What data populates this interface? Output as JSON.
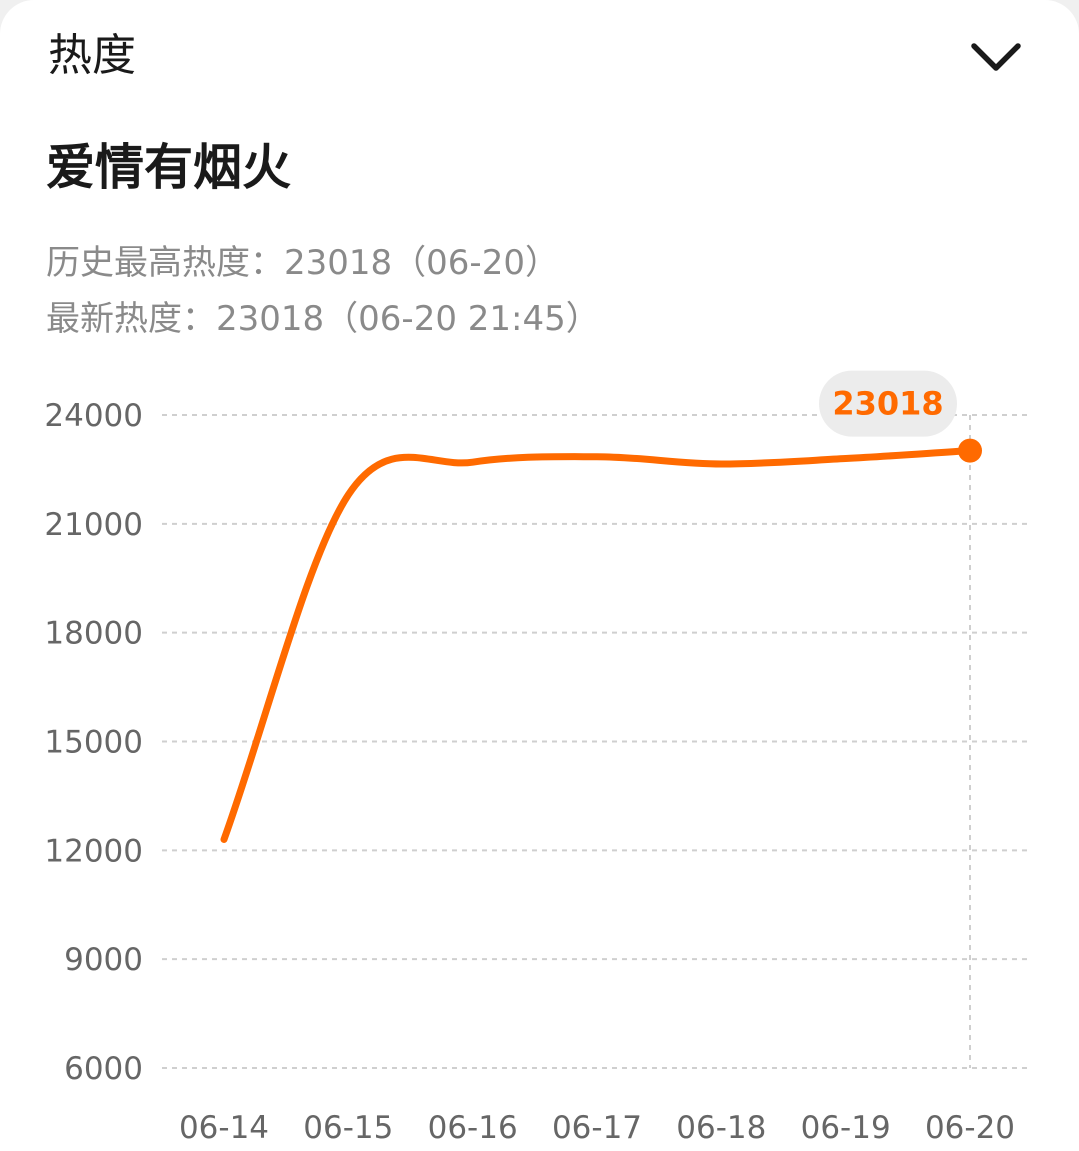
{
  "header": {
    "title": "热度",
    "toggle_icon": "chevron-down-icon"
  },
  "song": {
    "title": "爱情有烟火"
  },
  "stats": {
    "peak_line": "历史最高热度：23018（06-20）",
    "latest_line": "最新热度：23018（06-20 21:45）"
  },
  "colors": {
    "accent": "#ff6a00",
    "grid": "#cfcfcf",
    "tooltip_bg": "#ececec"
  },
  "chart_data": {
    "type": "line",
    "categories": [
      "06-14",
      "06-15",
      "06-16",
      "06-17",
      "06-18",
      "06-19",
      "06-20"
    ],
    "series": [
      {
        "values": [
          12300,
          21800,
          22700,
          22850,
          22650,
          22800,
          23018
        ]
      }
    ],
    "yticks": [
      24000,
      21000,
      18000,
      15000,
      12000,
      9000,
      6000
    ],
    "ylim": [
      6000,
      24000
    ],
    "grid": true,
    "highlight": {
      "index": 6,
      "label": "23018"
    },
    "title": "",
    "xlabel": "",
    "ylabel": ""
  }
}
